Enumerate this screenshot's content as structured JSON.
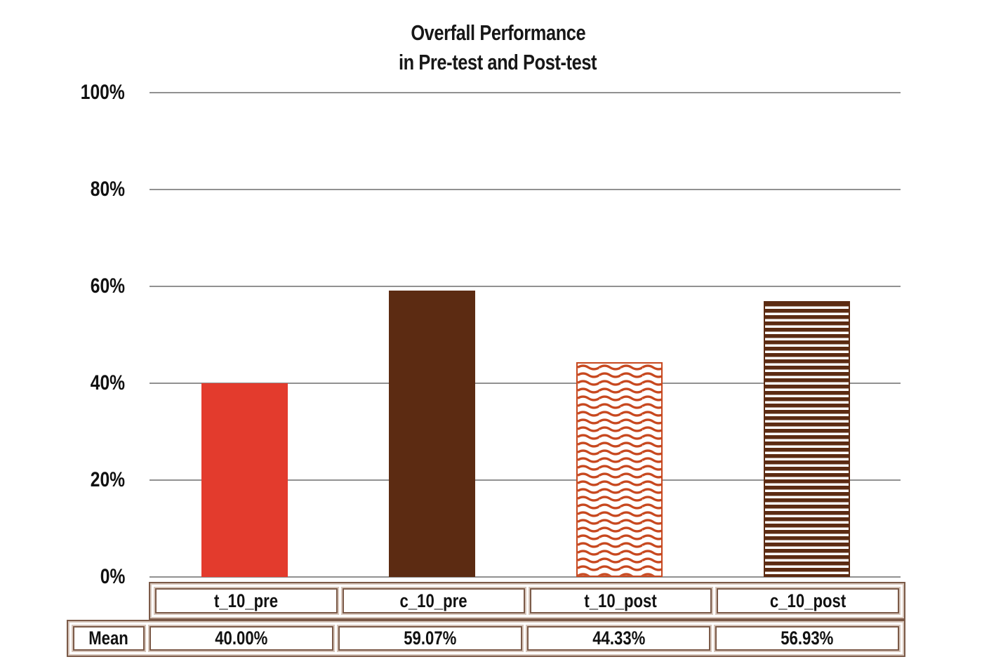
{
  "title": {
    "line1": "Overfall Performance",
    "line2": "in Pre-test and Post-test"
  },
  "chart_data": {
    "type": "bar",
    "title": "Overfall Performance in Pre-test and Post-test",
    "categories": [
      "t_10_pre",
      "c_10_pre",
      "t_10_post",
      "c_10_post"
    ],
    "values": [
      40.0,
      59.07,
      44.33,
      56.93
    ],
    "value_labels": [
      "40.00%",
      "59.07%",
      "44.33%",
      "56.93%"
    ],
    "xlabel": "",
    "ylabel": "",
    "ylim": [
      0,
      100
    ],
    "yticks": [
      0,
      20,
      40,
      60,
      80,
      100
    ],
    "ytick_labels": [
      "0%",
      "20%",
      "40%",
      "60%",
      "80%",
      "100%"
    ],
    "grid": true,
    "legend": false,
    "bar_styles": [
      {
        "fill": "solid",
        "color": "#e33b2d",
        "name": "solid-red"
      },
      {
        "fill": "solid",
        "color": "#5c2b12",
        "name": "solid-dark-brown"
      },
      {
        "fill": "wave",
        "color": "#c7481f",
        "name": "wavy-orange-outline"
      },
      {
        "fill": "hstripe",
        "color": "#5c2b12",
        "name": "horizontal-stripe-brown"
      }
    ]
  },
  "table": {
    "row_header": "Mean",
    "columns": [
      "t_10_pre",
      "c_10_pre",
      "t_10_post",
      "c_10_post"
    ],
    "mean_values": [
      "40.00%",
      "59.07%",
      "44.33%",
      "56.93%"
    ]
  },
  "colors": {
    "gridline": "#919191",
    "table_border_dark": "#7b5a48",
    "table_border_light": "#d8c7bc",
    "text": "#151515",
    "background": "#ffffff"
  }
}
